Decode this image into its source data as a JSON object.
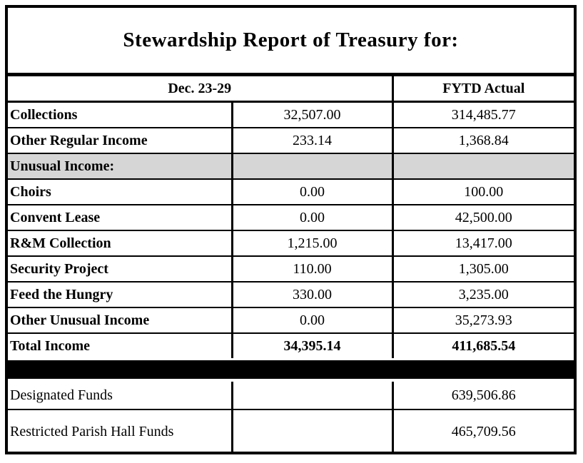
{
  "title": "Stewardship Report of Treasury for:",
  "table": {
    "header": {
      "period": "Dec. 23-29",
      "fytd": "FYTD Actual"
    },
    "rows": [
      {
        "label": "Collections",
        "week": "32,507.00",
        "fytd": "314,485.77"
      },
      {
        "label": "Other Regular Income",
        "week": "233.14",
        "fytd": "1,368.84"
      },
      {
        "label": "Unusual Income:",
        "week": "",
        "fytd": ""
      },
      {
        "label": "Choirs",
        "week": "0.00",
        "fytd": "100.00"
      },
      {
        "label": "Convent Lease",
        "week": "0.00",
        "fytd": "42,500.00"
      },
      {
        "label": "R&M Collection",
        "week": "1,215.00",
        "fytd": "13,417.00"
      },
      {
        "label": "Security Project",
        "week": "110.00",
        "fytd": "1,305.00"
      },
      {
        "label": "Feed the Hungry",
        "week": "330.00",
        "fytd": "3,235.00"
      },
      {
        "label": "Other Unusual Income",
        "week": "0.00",
        "fytd": "35,273.93"
      },
      {
        "label": "Total Income",
        "week": "34,395.14",
        "fytd": "411,685.54"
      }
    ],
    "funds_rows": [
      {
        "label": "Designated Funds",
        "week": "",
        "fytd": "639,506.86"
      },
      {
        "label": "Restricted Parish Hall Funds",
        "week": "",
        "fytd": "465,709.56"
      }
    ]
  },
  "colors": {
    "text": "#000000",
    "border": "#000000",
    "section_row_fill": "#d6d6d6",
    "separator_bar": "#000000",
    "background": "#ffffff"
  }
}
